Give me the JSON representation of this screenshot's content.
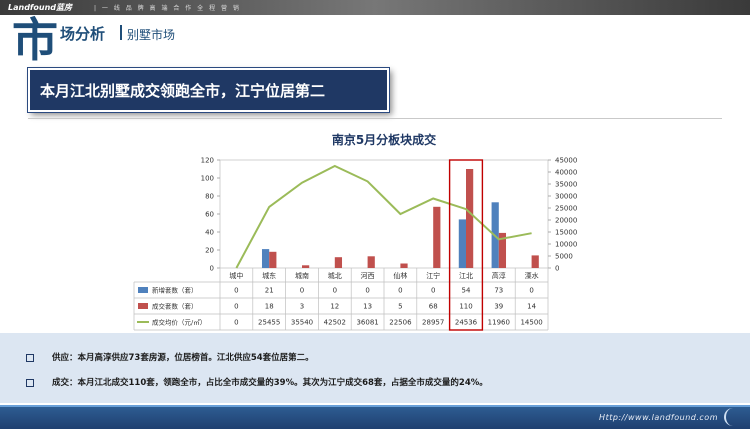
{
  "header": {
    "logo": "Landfound蓝房",
    "slogan": "| 一 线 品 牌   高 端 合 作   全 程 营 销",
    "big_char": "市",
    "section_title": "场分析",
    "section_subtitle": "别墅市场"
  },
  "banner": {
    "text": "本月江北别墅成交领跑全市，江宁位居第二"
  },
  "chart_data": {
    "type": "bar",
    "title": "南京5月分板块成交",
    "categories": [
      "城中",
      "城东",
      "城南",
      "城北",
      "河西",
      "仙林",
      "江宁",
      "江北",
      "高淳",
      "溧水"
    ],
    "series": [
      {
        "name": "新增套数（套）",
        "kind": "bar",
        "axis": "left",
        "color": "#4f81bd",
        "values": [
          0,
          21,
          0,
          0,
          0,
          0,
          0,
          54,
          73,
          0
        ]
      },
      {
        "name": "成交套数（套）",
        "kind": "bar",
        "axis": "left",
        "color": "#c0504d",
        "values": [
          0,
          18,
          3,
          12,
          13,
          5,
          68,
          110,
          39,
          14
        ]
      },
      {
        "name": "成交均价（元/㎡）",
        "kind": "line",
        "axis": "right",
        "color": "#9bbb59",
        "values": [
          0,
          25455,
          35540,
          42502,
          36081,
          22506,
          28957,
          24536,
          11960,
          14500
        ]
      }
    ],
    "ylim": [
      0,
      120
    ],
    "y_ticks": [
      0,
      20,
      40,
      60,
      80,
      100,
      120
    ],
    "y2lim": [
      0,
      45000
    ],
    "y2_ticks": [
      0,
      5000,
      10000,
      15000,
      20000,
      25000,
      30000,
      35000,
      40000,
      45000
    ],
    "highlight_category": "江北",
    "highlight_color": "#c00000",
    "grid": false,
    "legend": "table-bottom"
  },
  "notes": [
    {
      "text": "供应：本月高淳供应73套房源，位居榜首。江北供应54套位居第二。"
    },
    {
      "text": "成交：本月江北成交110套，领跑全市，占比全市成交量的39%。其次为江宁成交68套，占据全市成交量的24%。"
    }
  ],
  "footer": {
    "url": "Http://www.landfound.com"
  }
}
